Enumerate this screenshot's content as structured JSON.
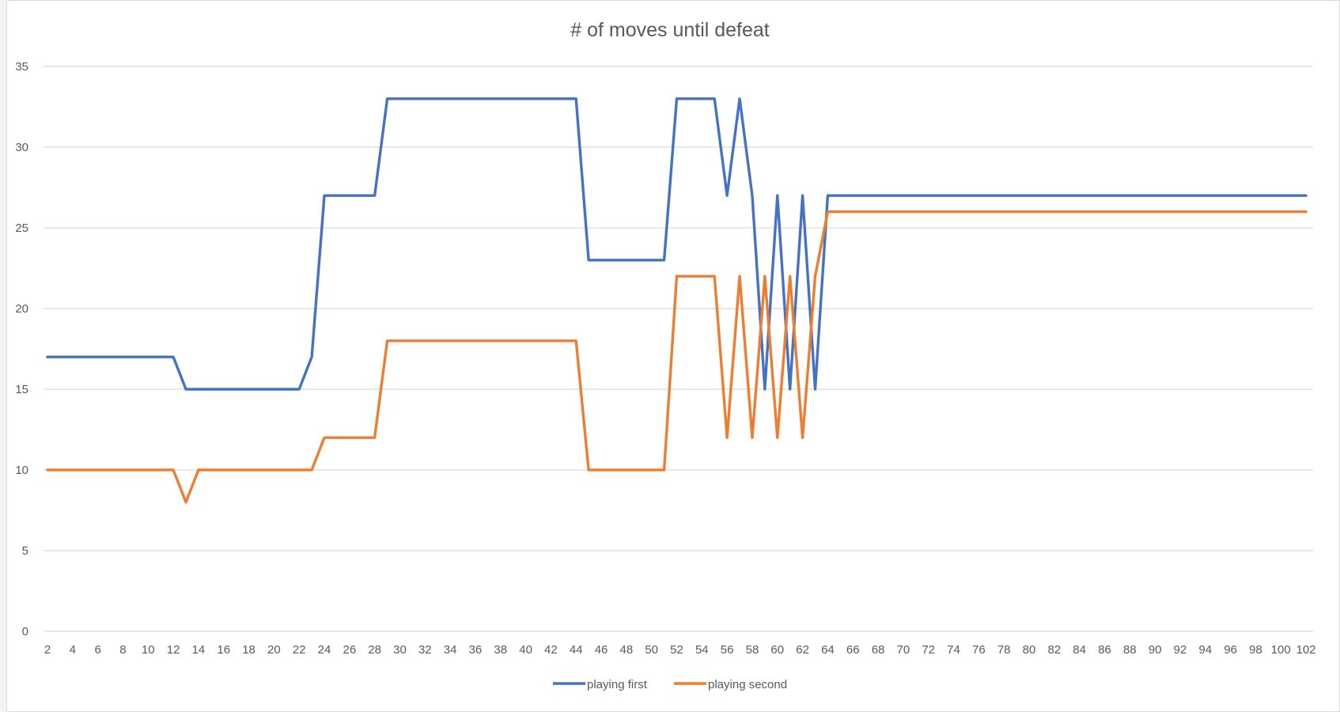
{
  "chart_data": {
    "type": "line",
    "title": "# of moves until defeat",
    "xlabel": "",
    "ylabel": "",
    "ylim": [
      0,
      35
    ],
    "yticks": [
      "0",
      "5",
      "10",
      "15",
      "20",
      "25",
      "30",
      "35"
    ],
    "x": [
      2,
      3,
      4,
      5,
      6,
      7,
      8,
      9,
      10,
      11,
      12,
      13,
      14,
      15,
      16,
      17,
      18,
      19,
      20,
      21,
      22,
      23,
      24,
      25,
      26,
      27,
      28,
      29,
      30,
      31,
      32,
      33,
      34,
      35,
      36,
      37,
      38,
      39,
      40,
      41,
      42,
      43,
      44,
      45,
      46,
      47,
      48,
      49,
      50,
      51,
      52,
      53,
      54,
      55,
      56,
      57,
      58,
      59,
      60,
      61,
      62,
      63,
      64,
      65,
      66,
      67,
      68,
      69,
      70,
      71,
      72,
      73,
      74,
      75,
      76,
      77,
      78,
      79,
      80,
      81,
      82,
      83,
      84,
      85,
      86,
      87,
      88,
      89,
      90,
      91,
      92,
      93,
      94,
      95,
      96,
      97,
      98,
      99,
      100,
      101,
      102
    ],
    "xtick_labels": [
      "2",
      "4",
      "6",
      "8",
      "10",
      "12",
      "14",
      "16",
      "18",
      "20",
      "22",
      "24",
      "26",
      "28",
      "30",
      "32",
      "34",
      "36",
      "38",
      "40",
      "42",
      "44",
      "46",
      "48",
      "50",
      "52",
      "54",
      "56",
      "58",
      "60",
      "62",
      "64",
      "66",
      "68",
      "70",
      "72",
      "74",
      "76",
      "78",
      "80",
      "82",
      "84",
      "86",
      "88",
      "90",
      "92",
      "94",
      "96",
      "98",
      "100",
      "102"
    ],
    "series": [
      {
        "name": "playing first",
        "color": "#4472c4",
        "values": [
          17,
          17,
          17,
          17,
          17,
          17,
          17,
          17,
          17,
          17,
          17,
          15,
          15,
          15,
          15,
          15,
          15,
          15,
          15,
          15,
          15,
          17,
          27,
          27,
          27,
          27,
          27,
          33,
          33,
          33,
          33,
          33,
          33,
          33,
          33,
          33,
          33,
          33,
          33,
          33,
          33,
          33,
          33,
          23,
          23,
          23,
          23,
          23,
          23,
          23,
          33,
          33,
          33,
          33,
          27,
          33,
          27,
          15,
          27,
          15,
          27,
          15,
          27,
          27,
          27,
          27,
          27,
          27,
          27,
          27,
          27,
          27,
          27,
          27,
          27,
          27,
          27,
          27,
          27,
          27,
          27,
          27,
          27,
          27,
          27,
          27,
          27,
          27,
          27,
          27,
          27,
          27,
          27,
          27,
          27,
          27,
          27,
          27,
          27,
          27,
          27
        ]
      },
      {
        "name": "playing second",
        "color": "#ed7d31",
        "values": [
          10,
          10,
          10,
          10,
          10,
          10,
          10,
          10,
          10,
          10,
          10,
          8,
          10,
          10,
          10,
          10,
          10,
          10,
          10,
          10,
          10,
          10,
          12,
          12,
          12,
          12,
          12,
          18,
          18,
          18,
          18,
          18,
          18,
          18,
          18,
          18,
          18,
          18,
          18,
          18,
          18,
          18,
          18,
          10,
          10,
          10,
          10,
          10,
          10,
          10,
          22,
          22,
          22,
          22,
          12,
          22,
          12,
          22,
          12,
          22,
          12,
          22,
          26,
          26,
          26,
          26,
          26,
          26,
          26,
          26,
          26,
          26,
          26,
          26,
          26,
          26,
          26,
          26,
          26,
          26,
          26,
          26,
          26,
          26,
          26,
          26,
          26,
          26,
          26,
          26,
          26,
          26,
          26,
          26,
          26,
          26,
          26,
          26,
          26,
          26,
          26
        ]
      }
    ],
    "grid": true,
    "legend_position": "bottom"
  }
}
